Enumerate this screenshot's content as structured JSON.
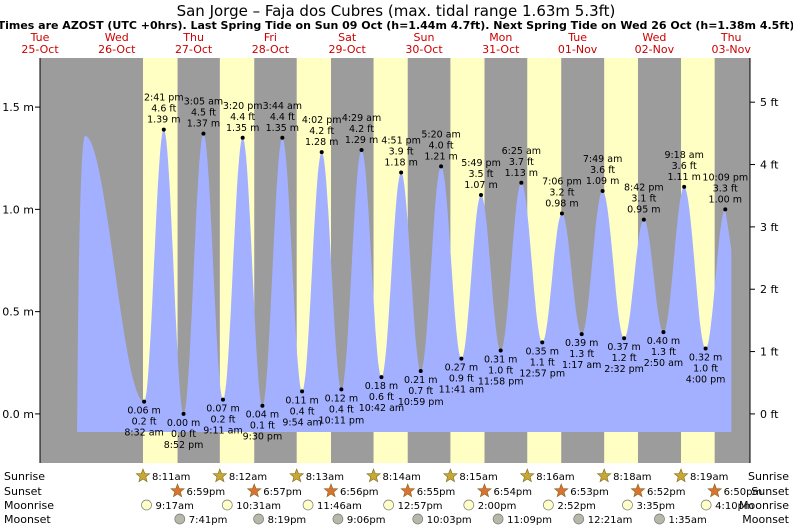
{
  "chart_data": {
    "type": "area",
    "title": "San Jorge – Faja dos Cubres (max. tidal range 1.63m 5.3ft)",
    "subtitle": "Times are AZOST (UTC +0hrs). Last Spring Tide on Sun 09 Oct (h=1.44m 4.7ft). Next Spring Tide on Wed 26 Oct (h=1.38m 4.5ft)",
    "ylabel_left_ticks": [
      "0.0 m",
      "0.5 m",
      "1.0 m",
      "1.5 m"
    ],
    "ylabel_right_ticks": [
      "0 ft",
      "1 ft",
      "2 ft",
      "3 ft",
      "4 ft",
      "5 ft"
    ],
    "ylim_m": [
      -0.24,
      1.74
    ],
    "days": [
      {
        "dow": "Tue",
        "date": "25-Oct"
      },
      {
        "dow": "Wed",
        "date": "26-Oct"
      },
      {
        "dow": "Thu",
        "date": "27-Oct"
      },
      {
        "dow": "Fri",
        "date": "28-Oct"
      },
      {
        "dow": "Sat",
        "date": "29-Oct"
      },
      {
        "dow": "Sun",
        "date": "30-Oct"
      },
      {
        "dow": "Mon",
        "date": "31-Oct"
      },
      {
        "dow": "Tue",
        "date": "01-Nov"
      },
      {
        "dow": "Wed",
        "date": "02-Nov"
      },
      {
        "dow": "Thu",
        "date": "03-Nov"
      }
    ],
    "tides": [
      {
        "type": "high",
        "day": -1,
        "time": "14:05",
        "h": 1.36,
        "label": false
      },
      {
        "type": "low",
        "day": 0,
        "time": "08:32",
        "h": 0.06,
        "m": "0.06 m",
        "ft": "0.2 ft",
        "t": "8:32 am"
      },
      {
        "type": "high",
        "day": 0,
        "time": "14:41",
        "h": 1.39,
        "m": "1.39 m",
        "ft": "4.6 ft",
        "t": "2:41 pm"
      },
      {
        "type": "low",
        "day": 0,
        "time": "20:52",
        "h": 0.0,
        "m": "0.00 m",
        "ft": "0.0 ft",
        "t": "8:52 pm"
      },
      {
        "type": "high",
        "day": 1,
        "time": "03:05",
        "h": 1.37,
        "m": "1.37 m",
        "ft": "4.5 ft",
        "t": "3:05 am"
      },
      {
        "type": "low",
        "day": 1,
        "time": "09:11",
        "h": 0.07,
        "m": "0.07 m",
        "ft": "0.2 ft",
        "t": "9:11 am"
      },
      {
        "type": "high",
        "day": 1,
        "time": "15:20",
        "h": 1.35,
        "m": "1.35 m",
        "ft": "4.4 ft",
        "t": "3:20 pm"
      },
      {
        "type": "low",
        "day": 1,
        "time": "21:30",
        "h": 0.04,
        "m": "0.04 m",
        "ft": "0.1 ft",
        "t": "9:30 pm"
      },
      {
        "type": "high",
        "day": 2,
        "time": "03:44",
        "h": 1.35,
        "m": "1.35 m",
        "ft": "4.4 ft",
        "t": "3:44 am"
      },
      {
        "type": "low",
        "day": 2,
        "time": "09:54",
        "h": 0.11,
        "m": "0.11 m",
        "ft": "0.4 ft",
        "t": "9:54 am"
      },
      {
        "type": "high",
        "day": 2,
        "time": "16:02",
        "h": 1.28,
        "m": "1.28 m",
        "ft": "4.2 ft",
        "t": "4:02 pm"
      },
      {
        "type": "low",
        "day": 2,
        "time": "22:11",
        "h": 0.12,
        "m": "0.12 m",
        "ft": "0.4 ft",
        "t": "10:11 pm"
      },
      {
        "type": "high",
        "day": 3,
        "time": "04:29",
        "h": 1.29,
        "m": "1.29 m",
        "ft": "4.2 ft",
        "t": "4:29 am"
      },
      {
        "type": "low",
        "day": 3,
        "time": "10:42",
        "h": 0.18,
        "m": "0.18 m",
        "ft": "0.6 ft",
        "t": "10:42 am"
      },
      {
        "type": "high",
        "day": 3,
        "time": "16:51",
        "h": 1.18,
        "m": "1.18 m",
        "ft": "3.9 ft",
        "t": "4:51 pm"
      },
      {
        "type": "low",
        "day": 3,
        "time": "22:59",
        "h": 0.21,
        "m": "0.21 m",
        "ft": "0.7 ft",
        "t": "10:59 pm"
      },
      {
        "type": "high",
        "day": 4,
        "time": "05:20",
        "h": 1.21,
        "m": "1.21 m",
        "ft": "4.0 ft",
        "t": "5:20 am"
      },
      {
        "type": "low",
        "day": 4,
        "time": "11:41",
        "h": 0.27,
        "m": "0.27 m",
        "ft": "0.9 ft",
        "t": "11:41 am"
      },
      {
        "type": "high",
        "day": 4,
        "time": "17:49",
        "h": 1.07,
        "m": "1.07 m",
        "ft": "3.5 ft",
        "t": "5:49 pm"
      },
      {
        "type": "low",
        "day": 4,
        "time": "23:58",
        "h": 0.31,
        "m": "0.31 m",
        "ft": "1.0 ft",
        "t": "11:58 pm"
      },
      {
        "type": "high",
        "day": 5,
        "time": "06:25",
        "h": 1.13,
        "m": "1.13 m",
        "ft": "3.7 ft",
        "t": "6:25 am"
      },
      {
        "type": "low",
        "day": 5,
        "time": "12:57",
        "h": 0.35,
        "m": "0.35 m",
        "ft": "1.1 ft",
        "t": "12:57 pm"
      },
      {
        "type": "high",
        "day": 5,
        "time": "19:06",
        "h": 0.98,
        "m": "0.98 m",
        "ft": "3.2 ft",
        "t": "7:06 pm"
      },
      {
        "type": "low",
        "day": 6,
        "time": "01:17",
        "h": 0.39,
        "m": "0.39 m",
        "ft": "1.3 ft",
        "t": "1:17 am"
      },
      {
        "type": "high",
        "day": 6,
        "time": "07:49",
        "h": 1.09,
        "m": "1.09 m",
        "ft": "3.6 ft",
        "t": "7:49 am"
      },
      {
        "type": "low",
        "day": 6,
        "time": "14:32",
        "h": 0.37,
        "m": "0.37 m",
        "ft": "1.2 ft",
        "t": "2:32 pm"
      },
      {
        "type": "high",
        "day": 6,
        "time": "20:42",
        "h": 0.95,
        "m": "0.95 m",
        "ft": "3.1 ft",
        "t": "8:42 pm"
      },
      {
        "type": "low",
        "day": 7,
        "time": "02:50",
        "h": 0.4,
        "m": "0.40 m",
        "ft": "1.3 ft",
        "t": "2:50 am"
      },
      {
        "type": "high",
        "day": 7,
        "time": "09:18",
        "h": 1.11,
        "m": "1.11 m",
        "ft": "3.6 ft",
        "t": "9:18 am"
      },
      {
        "type": "low",
        "day": 7,
        "time": "16:00",
        "h": 0.32,
        "m": "0.32 m",
        "ft": "1.0 ft",
        "t": "4:00 pm"
      },
      {
        "type": "high",
        "day": 7,
        "time": "22:09",
        "h": 1.0,
        "m": "1.00 m",
        "ft": "3.3 ft",
        "t": "10:09 pm"
      }
    ],
    "astro": {
      "labels": {
        "sunrise": "Sunrise",
        "sunset": "Sunset",
        "moonrise": "Moonrise",
        "moonset": "Moonset"
      },
      "sunrise": [
        {
          "day": 0,
          "time": "08:11",
          "label": "8:11am"
        },
        {
          "day": 1,
          "time": "08:12",
          "label": "8:12am"
        },
        {
          "day": 2,
          "time": "08:13",
          "label": "8:13am"
        },
        {
          "day": 3,
          "time": "08:14",
          "label": "8:14am"
        },
        {
          "day": 4,
          "time": "08:15",
          "label": "8:15am"
        },
        {
          "day": 5,
          "time": "08:16",
          "label": "8:16am"
        },
        {
          "day": 6,
          "time": "08:18",
          "label": "8:18am"
        },
        {
          "day": 7,
          "time": "08:19",
          "label": "8:19am"
        }
      ],
      "sunset": [
        {
          "day": 0,
          "time": "18:59",
          "label": "6:59pm"
        },
        {
          "day": 1,
          "time": "18:57",
          "label": "6:57pm"
        },
        {
          "day": 2,
          "time": "18:56",
          "label": "6:56pm"
        },
        {
          "day": 3,
          "time": "18:55",
          "label": "6:55pm"
        },
        {
          "day": 4,
          "time": "18:54",
          "label": "6:54pm"
        },
        {
          "day": 5,
          "time": "18:53",
          "label": "6:53pm"
        },
        {
          "day": 6,
          "time": "18:52",
          "label": "6:52pm"
        },
        {
          "day": 7,
          "time": "18:50",
          "label": "6:50pm"
        }
      ],
      "moonrise": [
        {
          "day": 0,
          "time": "09:17",
          "label": "9:17am"
        },
        {
          "day": 1,
          "time": "10:31",
          "label": "10:31am"
        },
        {
          "day": 2,
          "time": "11:46",
          "label": "11:46am"
        },
        {
          "day": 3,
          "time": "12:57",
          "label": "12:57pm"
        },
        {
          "day": 4,
          "time": "14:00",
          "label": "2:00pm"
        },
        {
          "day": 5,
          "time": "14:52",
          "label": "2:52pm"
        },
        {
          "day": 6,
          "time": "15:35",
          "label": "3:35pm"
        },
        {
          "day": 7,
          "time": "16:10",
          "label": "4:10pm"
        }
      ],
      "moonset": [
        {
          "day": 0,
          "time": "19:41",
          "label": "7:41pm"
        },
        {
          "day": 1,
          "time": "20:19",
          "label": "8:19pm"
        },
        {
          "day": 2,
          "time": "21:06",
          "label": "9:06pm"
        },
        {
          "day": 3,
          "time": "22:03",
          "label": "10:03pm"
        },
        {
          "day": 4,
          "time": "23:09",
          "label": "11:09pm"
        },
        {
          "day": 6,
          "time": "00:21",
          "label": "12:21am"
        },
        {
          "day": 7,
          "time": "01:35",
          "label": "1:35am"
        }
      ]
    },
    "colors": {
      "night": "#9c9c9c",
      "day": "#ffffc4",
      "water": "#a3b0ff",
      "daylabel": "#cc0000",
      "sun": "#c8a832",
      "sunset": "#e07030",
      "moonrise": "#ffffc8",
      "moonset": "#b8b8a8"
    }
  }
}
